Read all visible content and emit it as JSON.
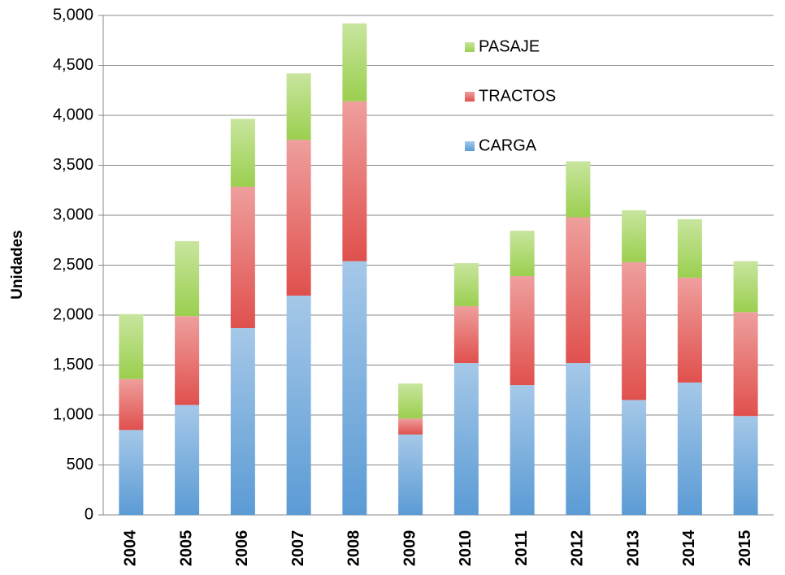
{
  "chart_data": {
    "type": "stacked_bar",
    "y_label": "Unidades",
    "categories": [
      "2004",
      "2005",
      "2006",
      "2007",
      "2008",
      "2009",
      "2010",
      "2011",
      "2012",
      "2013",
      "2014",
      "2015"
    ],
    "series": [
      {
        "name": "CARGA",
        "color": "#5b9bd5",
        "values": [
          850,
          1100,
          1870,
          2195,
          2540,
          805,
          1520,
          1300,
          1520,
          1150,
          1325,
          990
        ]
      },
      {
        "name": "TRACTOS",
        "color": "#e0504d",
        "values": [
          510,
          890,
          1415,
          1560,
          1600,
          160,
          570,
          1090,
          1460,
          1380,
          1050,
          1040
        ]
      },
      {
        "name": "PASAJE",
        "color": "#9bcf4f",
        "values": [
          650,
          750,
          680,
          665,
          780,
          350,
          430,
          455,
          560,
          520,
          585,
          510
        ]
      }
    ],
    "ylim": [
      0,
      5000
    ],
    "yticks": [
      0,
      500,
      {
        "value": 1000,
        "label": "1,000"
      },
      {
        "value": 1500,
        "label": "1,500"
      },
      {
        "value": 2000,
        "label": "2,000"
      },
      {
        "value": 2500,
        "label": "2,500"
      },
      {
        "value": 3000,
        "label": "3,000"
      },
      {
        "value": 3500,
        "label": "3,500"
      },
      {
        "value": 4000,
        "label": "4,000"
      },
      {
        "value": 4500,
        "label": "4,500"
      },
      {
        "value": 5000,
        "label": "5,000"
      }
    ],
    "grid": true,
    "legend_position": "upper-right"
  }
}
